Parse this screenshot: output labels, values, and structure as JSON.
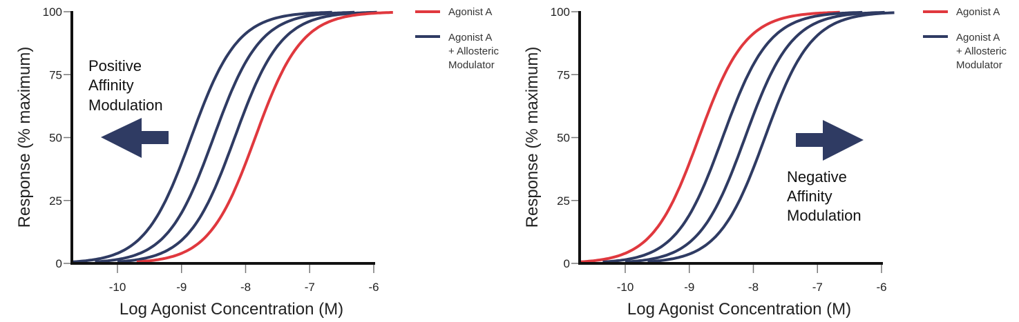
{
  "colors": {
    "agonist": "#e0383e",
    "modulated": "#2f3b63",
    "axis": "#111111"
  },
  "chart_data": [
    {
      "type": "line",
      "xlabel": "Log Agonist Concentration (M)",
      "ylabel": "Response (% maximum)",
      "xlim": [
        -10.7,
        -6
      ],
      "ylim": [
        0,
        100
      ],
      "xticks": [
        "-10",
        "-9",
        "-8",
        "-7",
        "-6"
      ],
      "yticks": [
        "0",
        "25",
        "50",
        "75",
        "100"
      ],
      "grid": false,
      "legend_position": "top-right",
      "legend": [
        {
          "label": "Agonist A",
          "series": "agonist"
        },
        {
          "label": "Agonist A\n+ Allosteric\nModulator",
          "lines": [
            "Agonist A",
            "+ Allosteric",
            "Modulator"
          ],
          "series": "modulated"
        }
      ],
      "annotation": {
        "lines": [
          "Positive",
          "Affinity",
          "Modulation"
        ],
        "arrow": "left"
      },
      "series": [
        {
          "group": "modulated",
          "logEC50": -8.85,
          "hill_slope": 1.2,
          "x_range": [
            -10.7,
            -6.65
          ]
        },
        {
          "group": "modulated",
          "logEC50": -8.5,
          "hill_slope": 1.2,
          "x_range": [
            -10.35,
            -6.3
          ]
        },
        {
          "group": "modulated",
          "logEC50": -8.17,
          "hill_slope": 1.2,
          "x_range": [
            -10.0,
            -5.95
          ]
        },
        {
          "group": "agonist",
          "logEC50": -7.85,
          "hill_slope": 1.2,
          "x_range": [
            -9.7,
            -5.7
          ]
        }
      ]
    },
    {
      "type": "line",
      "xlabel": "Log Agonist Concentration (M)",
      "ylabel": "Response (% maximum)",
      "xlim": [
        -10.7,
        -6
      ],
      "ylim": [
        0,
        100
      ],
      "xticks": [
        "-10",
        "-9",
        "-8",
        "-7",
        "-6"
      ],
      "yticks": [
        "0",
        "25",
        "50",
        "75",
        "100"
      ],
      "grid": false,
      "legend_position": "top-right",
      "legend": [
        {
          "label": "Agonist A",
          "series": "agonist"
        },
        {
          "label": "Agonist A\n+ Allosteric\nModulator",
          "lines": [
            "Agonist A",
            "+ Allosteric",
            "Modulator"
          ],
          "series": "modulated"
        }
      ],
      "annotation": {
        "lines": [
          "Negative",
          "Affinity",
          "Modulation"
        ],
        "arrow": "right"
      },
      "series": [
        {
          "group": "agonist",
          "logEC50": -8.85,
          "hill_slope": 1.2,
          "x_range": [
            -10.7,
            -6.65
          ]
        },
        {
          "group": "modulated",
          "logEC50": -8.48,
          "hill_slope": 1.2,
          "x_range": [
            -10.35,
            -6.3
          ]
        },
        {
          "group": "modulated",
          "logEC50": -8.13,
          "hill_slope": 1.2,
          "x_range": [
            -10.0,
            -5.95
          ]
        },
        {
          "group": "modulated",
          "logEC50": -7.82,
          "hill_slope": 1.2,
          "x_range": [
            -9.65,
            -5.8
          ]
        }
      ]
    }
  ]
}
